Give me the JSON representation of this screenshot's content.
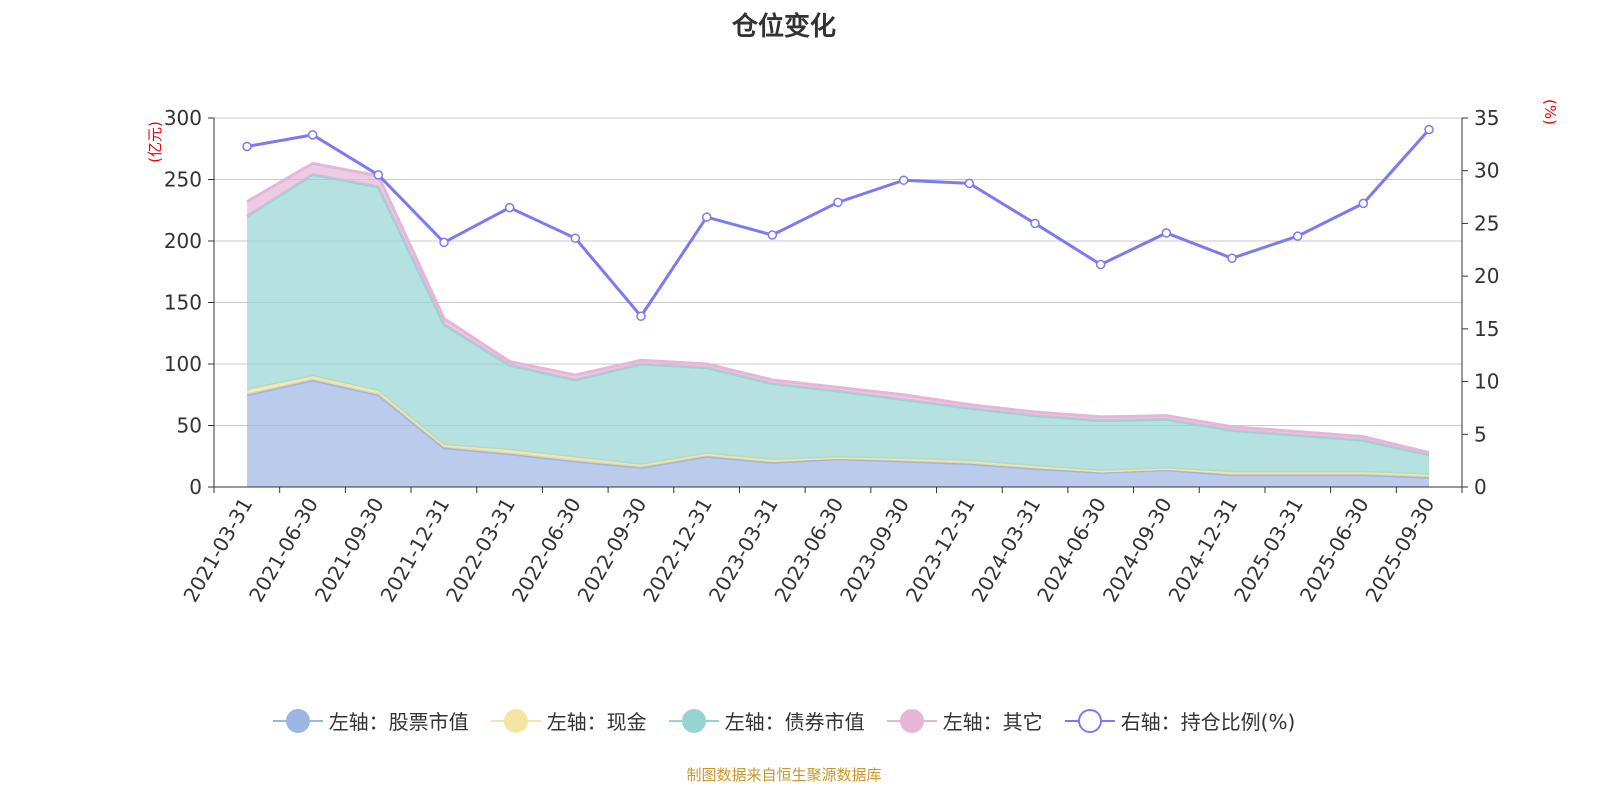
{
  "chart_data": {
    "type": "area",
    "title": "仓位变化",
    "left_axis_label": "(亿元)",
    "right_axis_label": "(%)",
    "ylim_left": [
      0,
      300
    ],
    "yticks_left": [
      0,
      50,
      100,
      150,
      200,
      250,
      300
    ],
    "ylim_right": [
      0,
      35
    ],
    "yticks_right": [
      0,
      5,
      10,
      15,
      20,
      25,
      30,
      35
    ],
    "grid": true,
    "legend_position": "bottom",
    "categories": [
      "2021-03-31",
      "2021-06-30",
      "2021-09-30",
      "2021-12-31",
      "2022-03-31",
      "2022-06-30",
      "2022-09-30",
      "2022-12-31",
      "2023-03-31",
      "2023-06-30",
      "2023-09-30",
      "2023-12-31",
      "2024-03-31",
      "2024-06-30",
      "2024-09-30",
      "2024-12-31",
      "2025-03-31",
      "2025-06-30",
      "2025-09-30"
    ],
    "series": [
      {
        "name": "左轴：股票市值",
        "axis": "left",
        "stacked": true,
        "color": "#9db5e3",
        "values": [
          75,
          87,
          75,
          32,
          27,
          21,
          16,
          25,
          20,
          23,
          21,
          19,
          15,
          12,
          14,
          10,
          10,
          10,
          8
        ]
      },
      {
        "name": "左轴：现金",
        "axis": "left",
        "stacked": true,
        "color": "#f5e5a3",
        "values": [
          4,
          3,
          3,
          2,
          3,
          3,
          2,
          2,
          2,
          1,
          2,
          2,
          2,
          1,
          1,
          2,
          2,
          2,
          2
        ]
      },
      {
        "name": "左轴：债券市值",
        "axis": "left",
        "stacked": true,
        "color": "#96d4d4",
        "values": [
          141,
          164,
          166,
          98,
          69,
          63,
          82,
          70,
          62,
          54,
          48,
          43,
          41,
          41,
          40,
          34,
          30,
          26,
          16
        ]
      },
      {
        "name": "左轴：其它",
        "axis": "left",
        "stacked": true,
        "color": "#e6b5d8",
        "values": [
          12,
          9,
          9,
          5,
          3,
          4,
          3,
          3,
          3,
          3,
          4,
          3,
          3,
          3,
          3,
          3,
          3,
          3,
          2
        ]
      },
      {
        "name": "右轴：持仓比例(%)",
        "axis": "right",
        "type": "line",
        "color": "#7b7bf0",
        "values": [
          32.3,
          33.4,
          29.6,
          23.2,
          26.5,
          23.6,
          16.2,
          25.6,
          23.9,
          27.0,
          29.1,
          28.8,
          25.0,
          21.1,
          24.1,
          21.7,
          23.8,
          26.9,
          33.9
        ]
      }
    ]
  },
  "footer": "制图数据来自恒生聚源数据库"
}
